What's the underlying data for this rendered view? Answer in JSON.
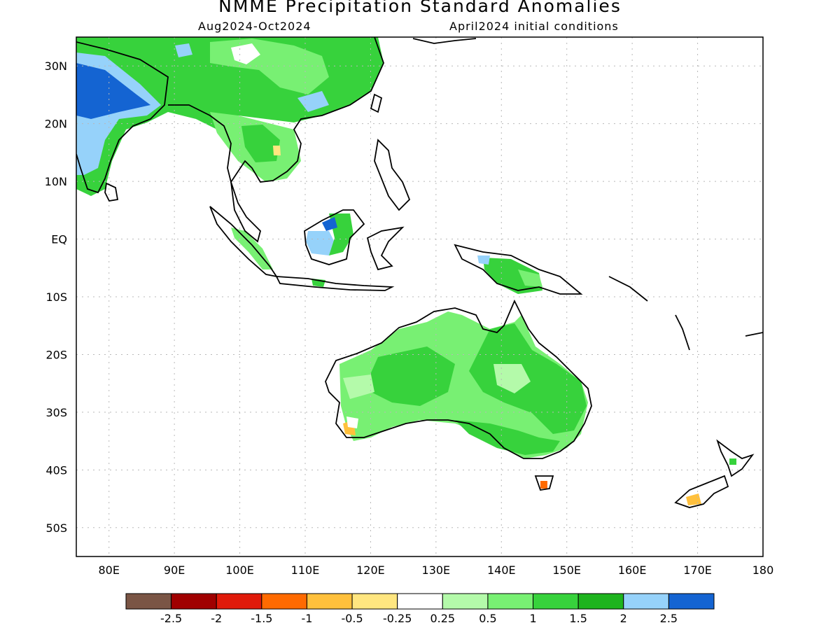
{
  "header": {
    "title": "NMME Precipitation Standard Anomalies",
    "period": "Aug2024-Oct2024",
    "initial_conditions": "April2024 initial conditions"
  },
  "axes": {
    "lon_labels": [
      "80E",
      "90E",
      "100E",
      "110E",
      "120E",
      "130E",
      "140E",
      "150E",
      "160E",
      "170E",
      "180"
    ],
    "lat_labels": [
      "30N",
      "20N",
      "10N",
      "EQ",
      "10S",
      "20S",
      "30S",
      "40S",
      "50S"
    ],
    "lon_values": [
      80,
      90,
      100,
      110,
      120,
      130,
      140,
      150,
      160,
      170,
      180
    ],
    "lat_values": [
      30,
      20,
      10,
      0,
      -10,
      -20,
      -30,
      -40,
      -50
    ],
    "lon_range": [
      75,
      180
    ],
    "lat_range": [
      -55,
      35
    ],
    "grid": "dotted"
  },
  "legend": {
    "colors": [
      "#7a5545",
      "#a00000",
      "#e01a0a",
      "#ff6a00",
      "#ffc03c",
      "#ffe680",
      "#ffffff",
      "#b4faaa",
      "#78f073",
      "#37d23c",
      "#1eb41e",
      "#96d2fa",
      "#1464d2"
    ],
    "labels": [
      "-2.5",
      "-2",
      "-1.5",
      "-1",
      "-0.5",
      "-0.25",
      "0.25",
      "0.5",
      "1",
      "1.5",
      "2",
      "2.5"
    ]
  }
}
